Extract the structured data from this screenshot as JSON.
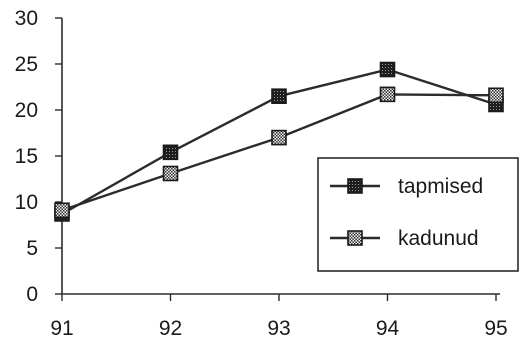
{
  "chart_data": {
    "type": "line",
    "title": "",
    "xlabel": "",
    "ylabel": "",
    "x": [
      "91",
      "92",
      "93",
      "94",
      "95"
    ],
    "ylim": [
      0,
      30
    ],
    "yticks": [
      0,
      5,
      10,
      15,
      20,
      25,
      30
    ],
    "grid": false,
    "legend_position": "right",
    "series": [
      {
        "name": "tapmised",
        "marker": "filled-square",
        "color": "#2b2b2b",
        "values": [
          8.7,
          15.4,
          21.5,
          24.4,
          20.6
        ]
      },
      {
        "name": "kadunud",
        "marker": "hatched-square",
        "color": "#2b2b2b",
        "values": [
          9.1,
          13.1,
          17.0,
          21.7,
          21.6
        ]
      }
    ]
  }
}
